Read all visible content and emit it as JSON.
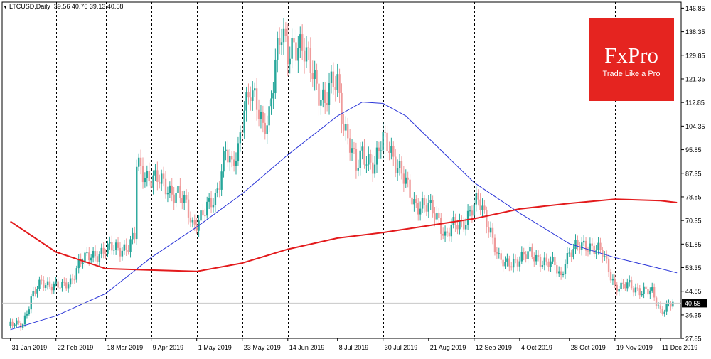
{
  "header": {
    "symbol": "LTCUSD,Daily",
    "ohlc": "39.56 40.76 39.13 40.58"
  },
  "logo": {
    "brand": "FxPro",
    "tagline": "Trade Like a Pro"
  },
  "colors": {
    "bull": "#26a69a",
    "bear": "#ef9a9a",
    "ma_fast": "#2a35d8",
    "ma_slow": "#e31a1c",
    "grid": "#000000",
    "price_line": "#c8c8c8",
    "brand": "#e52420"
  },
  "chart_data": {
    "type": "candlestick",
    "title": "LTCUSD,Daily",
    "ylim": [
      27.88,
      149.0
    ],
    "y_ticks": [
      "146.85",
      "138.35",
      "129.85",
      "121.35",
      "112.85",
      "104.35",
      "95.85",
      "87.35",
      "78.85",
      "70.35",
      "61.85",
      "53.35",
      "44.85",
      "36.35",
      "27.85"
    ],
    "x_ticks": [
      "31 Jan 2019",
      "22 Feb 2019",
      "18 Mar 2019",
      "9 Apr 2019",
      "1 May 2019",
      "23 May 2019",
      "14 Jun 2019",
      "8 Jul 2019",
      "30 Jul 2019",
      "21 Aug 2019",
      "12 Sep 2019",
      "4 Oct 2019",
      "28 Oct 2019",
      "19 Nov 2019",
      "11 Dec 2019"
    ],
    "vertical_grid_at": [
      "22 Feb 2019",
      "18 Mar 2019",
      "9 Apr 2019",
      "1 May 2019",
      "23 May 2019",
      "14 Jun 2019",
      "8 Jul 2019",
      "30 Jul 2019",
      "21 Aug 2019",
      "12 Sep 2019",
      "4 Oct 2019",
      "28 Oct 2019",
      "19 Nov 2019"
    ],
    "current_price": 40.58,
    "close_series": [
      [
        "31 Jan 2019",
        32.5
      ],
      [
        "6 Feb 2019",
        33.5
      ],
      [
        "10 Feb 2019",
        42.0
      ],
      [
        "15 Feb 2019",
        48.0
      ],
      [
        "20 Feb 2019",
        47.5
      ],
      [
        "25 Feb 2019",
        46.0
      ],
      [
        "1 Mar 2019",
        48.5
      ],
      [
        "5 Mar 2019",
        55.0
      ],
      [
        "10 Mar 2019",
        57.0
      ],
      [
        "15 Mar 2019",
        59.0
      ],
      [
        "20 Mar 2019",
        60.0
      ],
      [
        "25 Mar 2019",
        60.5
      ],
      [
        "29 Mar 2019",
        61.0
      ],
      [
        "1 Apr 2019",
        64.0
      ],
      [
        "2 Apr 2019",
        90.0
      ],
      [
        "5 Apr 2019",
        88.0
      ],
      [
        "9 Apr 2019",
        86.0
      ],
      [
        "13 Apr 2019",
        84.0
      ],
      [
        "17 Apr 2019",
        82.0
      ],
      [
        "22 Apr 2019",
        80.0
      ],
      [
        "26 Apr 2019",
        75.0
      ],
      [
        "29 Apr 2019",
        69.0
      ],
      [
        "3 May 2019",
        72.0
      ],
      [
        "7 May 2019",
        75.0
      ],
      [
        "10 May 2019",
        78.0
      ],
      [
        "13 May 2019",
        90.0
      ],
      [
        "15 May 2019",
        97.0
      ],
      [
        "18 May 2019",
        88.0
      ],
      [
        "21 May 2019",
        95.0
      ],
      [
        "24 May 2019",
        113.0
      ],
      [
        "27 May 2019",
        118.0
      ],
      [
        "30 May 2019",
        110.0
      ],
      [
        "2 Jun 2019",
        103.0
      ],
      [
        "5 Jun 2019",
        110.0
      ],
      [
        "8 Jun 2019",
        128.0
      ],
      [
        "11 Jun 2019",
        136.0
      ],
      [
        "14 Jun 2019",
        130.0
      ],
      [
        "17 Jun 2019",
        136.0
      ],
      [
        "20 Jun 2019",
        133.0
      ],
      [
        "23 Jun 2019",
        128.0
      ],
      [
        "26 Jun 2019",
        124.0
      ],
      [
        "29 Jun 2019",
        118.0
      ],
      [
        "2 Jul 2019",
        113.0
      ],
      [
        "5 Jul 2019",
        118.0
      ],
      [
        "8 Jul 2019",
        120.0
      ],
      [
        "11 Jul 2019",
        106.0
      ],
      [
        "14 Jul 2019",
        98.0
      ],
      [
        "17 Jul 2019",
        88.0
      ],
      [
        "20 Jul 2019",
        95.0
      ],
      [
        "23 Jul 2019",
        93.0
      ],
      [
        "26 Jul 2019",
        90.0
      ],
      [
        "30 Jul 2019",
        99.0
      ],
      [
        "2 Aug 2019",
        98.0
      ],
      [
        "6 Aug 2019",
        90.0
      ],
      [
        "10 Aug 2019",
        83.0
      ],
      [
        "14 Aug 2019",
        77.0
      ],
      [
        "18 Aug 2019",
        76.0
      ],
      [
        "22 Aug 2019",
        74.0
      ],
      [
        "26 Aug 2019",
        71.0
      ],
      [
        "29 Aug 2019",
        65.0
      ],
      [
        "2 Sep 2019",
        68.0
      ],
      [
        "6 Sep 2019",
        69.0
      ],
      [
        "10 Sep 2019",
        74.0
      ],
      [
        "14 Sep 2019",
        77.0
      ],
      [
        "17 Sep 2019",
        72.0
      ],
      [
        "20 Sep 2019",
        67.0
      ],
      [
        "24 Sep 2019",
        56.0
      ],
      [
        "27 Sep 2019",
        54.0
      ],
      [
        "1 Oct 2019",
        56.0
      ],
      [
        "5 Oct 2019",
        57.0
      ],
      [
        "9 Oct 2019",
        58.0
      ],
      [
        "13 Oct 2019",
        57.0
      ],
      [
        "17 Oct 2019",
        55.0
      ],
      [
        "21 Oct 2019",
        54.0
      ],
      [
        "24 Oct 2019",
        50.0
      ],
      [
        "26 Oct 2019",
        57.0
      ],
      [
        "29 Oct 2019",
        59.0
      ],
      [
        "2 Nov 2019",
        61.0
      ],
      [
        "6 Nov 2019",
        62.0
      ],
      [
        "10 Nov 2019",
        60.0
      ],
      [
        "13 Nov 2019",
        58.0
      ],
      [
        "16 Nov 2019",
        53.0
      ],
      [
        "19 Nov 2019",
        47.0
      ],
      [
        "22 Nov 2019",
        46.0
      ],
      [
        "25 Nov 2019",
        47.0
      ],
      [
        "29 Nov 2019",
        46.0
      ],
      [
        "3 Dec 2019",
        45.0
      ],
      [
        "7 Dec 2019",
        44.0
      ],
      [
        "11 Dec 2019",
        38.0
      ],
      [
        "14 Dec 2019",
        39.5
      ],
      [
        "17 Dec 2019",
        40.58
      ]
    ],
    "series": [
      {
        "values": [
          [
            "31 Jan 2019",
            31.0
          ],
          [
            "22 Feb 2019",
            36.0
          ],
          [
            "18 Mar 2019",
            44.0
          ],
          [
            "9 Apr 2019",
            57.0
          ],
          [
            "1 May 2019",
            68.0
          ],
          [
            "23 May 2019",
            80.0
          ],
          [
            "14 Jun 2019",
            94.0
          ],
          [
            "8 Jul 2019",
            108.0
          ],
          [
            "20 Jul 2019",
            113.0
          ],
          [
            "30 Jul 2019",
            112.5
          ],
          [
            "10 Aug 2019",
            108.0
          ],
          [
            "21 Aug 2019",
            100.0
          ],
          [
            "1 Sep 2019",
            92.0
          ],
          [
            "12 Sep 2019",
            84.0
          ],
          [
            "4 Oct 2019",
            73.0
          ],
          [
            "28 Oct 2019",
            62.0
          ],
          [
            "19 Nov 2019",
            57.0
          ],
          [
            "11 Dec 2019",
            53.0
          ],
          [
            "19 Dec 2019",
            51.5
          ]
        ]
      },
      {
        "values": [
          [
            "31 Jan 2019",
            70.0
          ],
          [
            "22 Feb 2019",
            59.0
          ],
          [
            "18 Mar 2019",
            53.0
          ],
          [
            "9 Apr 2019",
            52.5
          ],
          [
            "1 May 2019",
            52.0
          ],
          [
            "23 May 2019",
            55.0
          ],
          [
            "14 Jun 2019",
            60.0
          ],
          [
            "8 Jul 2019",
            64.0
          ],
          [
            "30 Jul 2019",
            66.0
          ],
          [
            "21 Aug 2019",
            68.5
          ],
          [
            "12 Sep 2019",
            71.0
          ],
          [
            "4 Oct 2019",
            74.5
          ],
          [
            "28 Oct 2019",
            76.5
          ],
          [
            "19 Nov 2019",
            78.0
          ],
          [
            "11 Dec 2019",
            77.5
          ],
          [
            "19 Dec 2019",
            76.8
          ]
        ]
      }
    ]
  }
}
